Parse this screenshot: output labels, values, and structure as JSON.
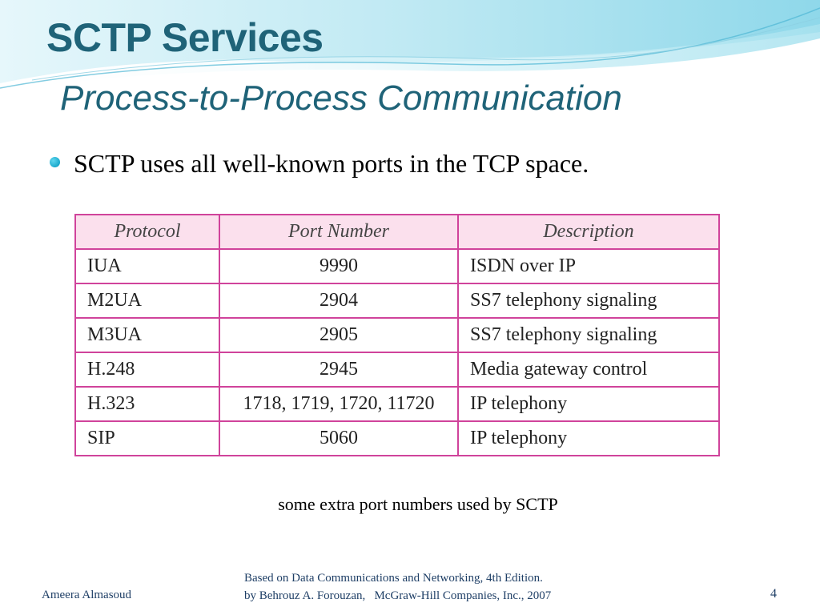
{
  "slide": {
    "title": "SCTP Services",
    "subtitle": "Process-to-Process Communication",
    "bullet": "SCTP uses all well-known ports in the TCP space."
  },
  "table": {
    "headers": [
      "Protocol",
      "Port Number",
      "Description"
    ],
    "rows": [
      [
        "IUA",
        "9990",
        "ISDN over IP"
      ],
      [
        "M2UA",
        "2904",
        "SS7 telephony signaling"
      ],
      [
        "M3UA",
        "2905",
        "SS7 telephony signaling"
      ],
      [
        "H.248",
        "2945",
        "Media gateway control"
      ],
      [
        "H.323",
        "1718, 1719, 1720, 11720",
        "IP telephony"
      ],
      [
        "SIP",
        "5060",
        "IP telephony"
      ]
    ]
  },
  "caption": "some extra port numbers used by SCTP",
  "footer": {
    "author": "Ameera Almasoud",
    "source_line1": "Based on Data Communications and Networking, 4th Edition.",
    "source_line2": "by Behrouz A. Forouzan,   McGraw-Hill Companies, Inc., 2007",
    "page_number": "4"
  },
  "colors": {
    "title": "#1f6378",
    "table_border": "#d0439b",
    "table_header_bg": "#fbe0ed",
    "bullet": "#1aa9cc",
    "footer_text": "#1f3f66"
  }
}
